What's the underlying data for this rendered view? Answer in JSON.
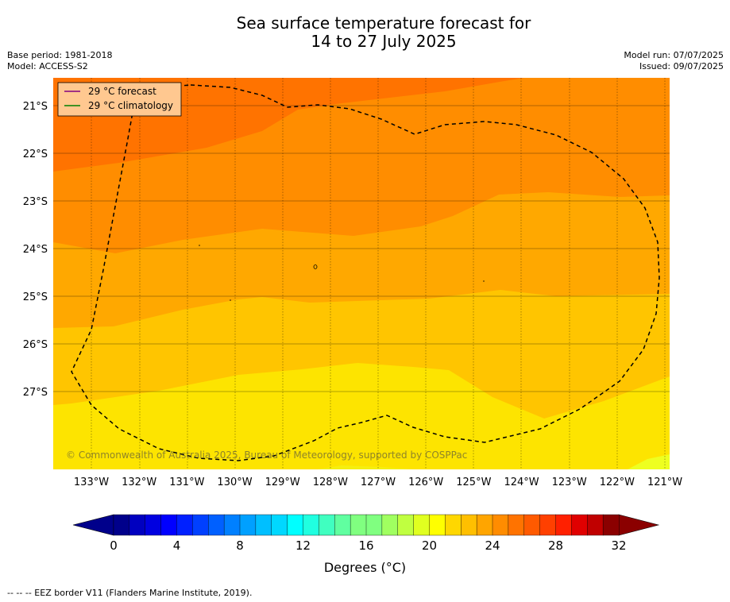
{
  "title_line1": "Sea surface temperature forecast for",
  "title_line2": "14 to 27 July 2025",
  "base_period": "Base period: 1981-2018",
  "model": "Model: ACCESS-S2",
  "model_run": "Model run: 07/07/2025",
  "issued": "Issued: 09/07/2025",
  "legend": {
    "forecast_label": "29 °C  forecast",
    "forecast_color": "#800080",
    "climatology_label": "29 °C  climatology",
    "climatology_color": "#008000"
  },
  "lat_labels": [
    "21°S",
    "22°S",
    "23°S",
    "24°S",
    "25°S",
    "26°S",
    "27°S"
  ],
  "lon_labels": [
    "133°W",
    "132°W",
    "131°W",
    "130°W",
    "129°W",
    "128°W",
    "127°W",
    "126°W",
    "125°W",
    "124°W",
    "123°W",
    "122°W",
    "121°W"
  ],
  "copyright": "© Commonwealth of Australia 2025, Bureau of Meteorology, supported by COSPPac",
  "colorbar": {
    "ticks": [
      "0",
      "4",
      "8",
      "12",
      "16",
      "20",
      "24",
      "28",
      "32"
    ],
    "label": "Degrees (°C)",
    "colors": [
      "#00008b",
      "#0000c0",
      "#0000e0",
      "#0000ff",
      "#0020ff",
      "#0040ff",
      "#0060ff",
      "#0080ff",
      "#00a0ff",
      "#00bfff",
      "#00d8ff",
      "#00ffff",
      "#20ffe0",
      "#40ffc0",
      "#60ffa0",
      "#80ff80",
      "#a0ff60",
      "#c0ff40",
      "#e0ff20",
      "#ffff00",
      "#ffd700",
      "#ffbf00",
      "#ffa500",
      "#ff8c00",
      "#ff7300",
      "#ff5a00",
      "#ff4000",
      "#ff2000",
      "#e00000",
      "#c00000",
      "#8b0000"
    ]
  },
  "footer": "--  --  -- EEZ border V11 (Flanders Marine Institute, 2019)."
}
